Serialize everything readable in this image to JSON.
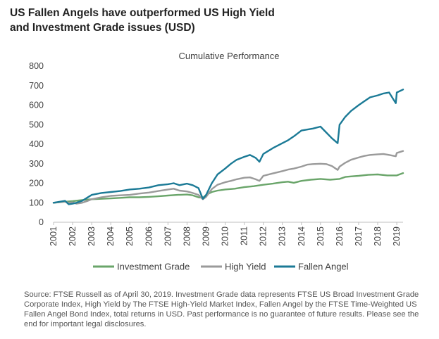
{
  "headline": {
    "line1": "US Fallen Angels have outperformed US High Yield",
    "line2": "and Investment Grade issues (USD)"
  },
  "source_note": "Source: FTSE Russell as of April 30, 2019. Investment Grade data represents FTSE US Broad Investment Grade Corporate Index, High Yield by The FTSE High-Yield Market Index, Fallen Angel by the FTSE Time-Weighted US Fallen Angel Bond Index, total returns in USD. Past performance is no guarantee of future results. Please see the end for important legal disclosures.",
  "chart_data": {
    "type": "line",
    "title": "Cumulative Performance",
    "xlabel": "",
    "ylabel": "",
    "xlim": [
      2001,
      2019.33
    ],
    "ylim": [
      0,
      800
    ],
    "yticks": [
      0,
      100,
      200,
      300,
      400,
      500,
      600,
      700,
      800
    ],
    "xticks": [
      "2001",
      "2002",
      "2003",
      "2004",
      "2005",
      "2006",
      "2007",
      "2008",
      "2009",
      "2010",
      "2011",
      "2012",
      "2013",
      "2014",
      "2015",
      "2016",
      "2017",
      "2018",
      "2019"
    ],
    "grid": false,
    "legend": "bottom",
    "series": [
      {
        "name": "Investment Grade",
        "color": "#6aa56a",
        "x": [
          2001,
          2001.5,
          2002,
          2002.5,
          2003,
          2003.5,
          2004,
          2004.5,
          2005,
          2005.5,
          2006,
          2006.5,
          2007,
          2007.5,
          2008,
          2008.3,
          2008.6,
          2008.83,
          2009,
          2009.3,
          2009.6,
          2010,
          2010.5,
          2011,
          2011.5,
          2012,
          2012.5,
          2013,
          2013.3,
          2013.6,
          2014,
          2014.5,
          2015,
          2015.5,
          2016,
          2016.3,
          2016.6,
          2017,
          2017.5,
          2018,
          2018.5,
          2019,
          2019.33
        ],
        "y": [
          100,
          104,
          108,
          114,
          118,
          120,
          122,
          125,
          128,
          128,
          130,
          133,
          137,
          140,
          142,
          138,
          128,
          125,
          140,
          155,
          162,
          168,
          172,
          180,
          185,
          192,
          198,
          205,
          208,
          202,
          212,
          218,
          222,
          218,
          222,
          232,
          235,
          238,
          243,
          245,
          240,
          240,
          252
        ]
      },
      {
        "name": "High Yield",
        "color": "#9a9a9a",
        "x": [
          2001,
          2001.3,
          2001.6,
          2001.8,
          2002,
          2002.2,
          2002.5,
          2002.75,
          2003,
          2003.5,
          2004,
          2004.5,
          2005,
          2005.5,
          2006,
          2006.5,
          2007,
          2007.3,
          2007.6,
          2008,
          2008.3,
          2008.6,
          2008.83,
          2009,
          2009.3,
          2009.6,
          2010,
          2010.3,
          2010.6,
          2011,
          2011.3,
          2011.6,
          2011.8,
          2012,
          2012.5,
          2013,
          2013.3,
          2013.6,
          2014,
          2014.3,
          2014.6,
          2015,
          2015.3,
          2015.6,
          2015.9,
          2016,
          2016.3,
          2016.6,
          2017,
          2017.3,
          2017.6,
          2018,
          2018.3,
          2018.6,
          2018.95,
          2019,
          2019.33
        ],
        "y": [
          100,
          103,
          106,
          100,
          102,
          95,
          100,
          108,
          118,
          128,
          135,
          138,
          140,
          147,
          152,
          160,
          168,
          172,
          162,
          158,
          150,
          140,
          118,
          130,
          170,
          192,
          205,
          212,
          220,
          228,
          230,
          220,
          212,
          238,
          250,
          262,
          270,
          275,
          285,
          295,
          298,
          300,
          298,
          288,
          268,
          285,
          305,
          320,
          332,
          340,
          345,
          348,
          350,
          345,
          338,
          355,
          365
        ]
      },
      {
        "name": "Fallen Angel",
        "color": "#1b7a96",
        "x": [
          2001,
          2001.3,
          2001.6,
          2001.8,
          2002,
          2002.2,
          2002.5,
          2002.75,
          2003,
          2003.5,
          2004,
          2004.5,
          2005,
          2005.5,
          2006,
          2006.5,
          2007,
          2007.3,
          2007.6,
          2008,
          2008.3,
          2008.6,
          2008.83,
          2009,
          2009.3,
          2009.6,
          2010,
          2010.3,
          2010.6,
          2011,
          2011.3,
          2011.6,
          2011.8,
          2012,
          2012.5,
          2013,
          2013.3,
          2013.6,
          2014,
          2014.3,
          2014.6,
          2015,
          2015.3,
          2015.6,
          2015.9,
          2016,
          2016.3,
          2016.6,
          2017,
          2017.3,
          2017.6,
          2018,
          2018.3,
          2018.6,
          2018.95,
          2019,
          2019.33
        ],
        "y": [
          100,
          105,
          110,
          92,
          95,
          100,
          110,
          125,
          140,
          150,
          155,
          160,
          168,
          172,
          178,
          190,
          195,
          200,
          190,
          198,
          190,
          175,
          120,
          140,
          200,
          245,
          275,
          300,
          320,
          335,
          345,
          330,
          310,
          350,
          380,
          405,
          420,
          440,
          470,
          475,
          480,
          490,
          460,
          430,
          405,
          500,
          540,
          570,
          600,
          620,
          640,
          650,
          660,
          665,
          610,
          665,
          680
        ]
      }
    ]
  }
}
